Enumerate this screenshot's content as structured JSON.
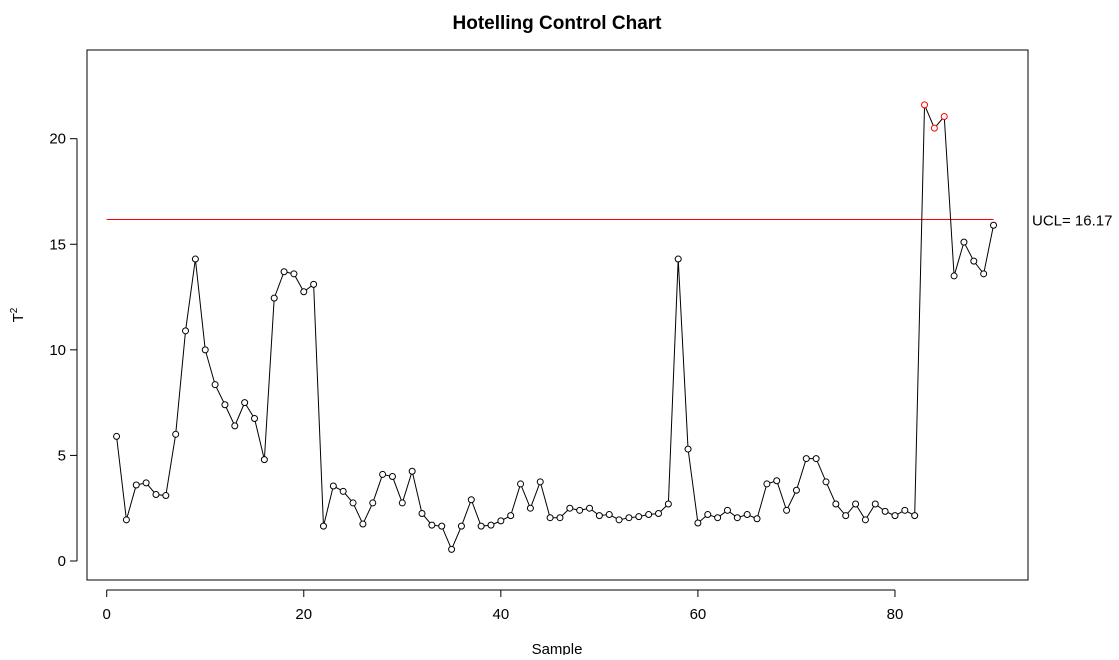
{
  "chart_data": {
    "type": "line",
    "title": "Hotelling Control Chart",
    "xlabel": "Sample",
    "ylabel": "T",
    "ylabel_superscript": "2",
    "xlim": [
      -2,
      93.5
    ],
    "ylim": [
      -0.9,
      24.2
    ],
    "xticks": [
      0,
      20,
      40,
      60,
      80
    ],
    "yticks": [
      0,
      5,
      10,
      15,
      20
    ],
    "ucl": 16.17,
    "ucl_label": "UCL= 16.17",
    "line_color": "#000000",
    "ucl_color": "#ff0000",
    "out_of_control_color": "#ff0000",
    "series": [
      {
        "x": [
          1,
          2,
          3,
          4,
          5,
          6,
          7,
          8,
          9,
          10,
          11,
          12,
          13,
          14,
          15,
          16,
          17,
          18,
          19,
          20,
          21,
          22,
          23,
          24,
          25,
          26,
          27,
          28,
          29,
          30,
          31,
          32,
          33,
          34,
          35,
          36,
          37,
          38,
          39,
          40,
          41,
          42,
          43,
          44,
          45,
          46,
          47,
          48,
          49,
          50,
          51,
          52,
          53,
          54,
          55,
          56,
          57,
          58,
          59,
          60,
          61,
          62,
          63,
          64,
          65,
          66,
          67,
          68,
          69,
          70,
          71,
          72,
          73,
          74,
          75,
          76,
          77,
          78,
          79,
          80,
          81,
          82,
          83,
          84,
          85,
          86,
          87,
          88,
          89,
          90
        ],
        "values": [
          5.9,
          1.95,
          3.6,
          3.7,
          3.15,
          3.1,
          6.0,
          10.9,
          14.3,
          10.0,
          8.35,
          7.4,
          6.4,
          7.5,
          6.75,
          4.8,
          12.45,
          13.7,
          13.6,
          12.75,
          13.1,
          1.65,
          3.55,
          3.3,
          2.75,
          1.75,
          2.75,
          4.1,
          4.0,
          2.75,
          4.25,
          2.25,
          1.7,
          1.65,
          0.55,
          1.65,
          2.9,
          1.65,
          1.7,
          1.9,
          2.15,
          3.65,
          2.5,
          3.75,
          2.05,
          2.05,
          2.5,
          2.4,
          2.5,
          2.15,
          2.2,
          1.95,
          2.05,
          2.1,
          2.2,
          2.25,
          2.7,
          14.3,
          5.3,
          1.8,
          2.2,
          2.05,
          2.4,
          2.05,
          2.2,
          2.0,
          3.65,
          3.8,
          2.4,
          3.35,
          4.85,
          4.85,
          3.75,
          2.7,
          2.15,
          2.7,
          1.95,
          2.7,
          2.35,
          2.15,
          2.4,
          2.15,
          21.6,
          20.5,
          21.05,
          13.5,
          15.1,
          14.2,
          13.6,
          15.9
        ]
      }
    ]
  }
}
